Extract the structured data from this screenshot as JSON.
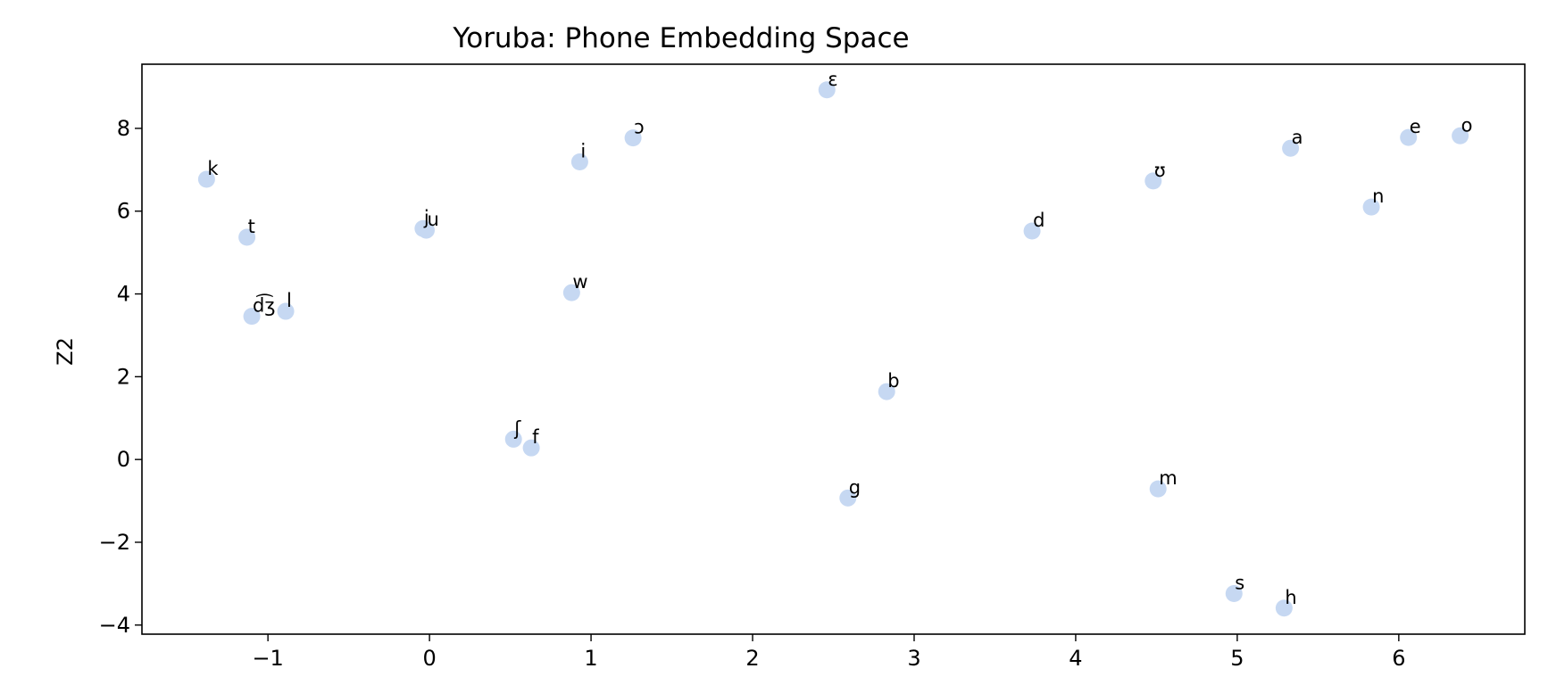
{
  "chart_data": {
    "type": "scatter",
    "title": "Yoruba:  Phone Embedding Space",
    "xlabel": "",
    "ylabel": "Z2",
    "xlim": [
      -1.78,
      6.78
    ],
    "ylim": [
      -4.22,
      9.55
    ],
    "xticks": [
      -1,
      0,
      1,
      2,
      3,
      4,
      5,
      6
    ],
    "xtick_labels": [
      "−1",
      "0",
      "1",
      "2",
      "3",
      "4",
      "5",
      "6"
    ],
    "yticks": [
      -4,
      -2,
      0,
      2,
      4,
      6,
      8
    ],
    "ytick_labels": [
      "−4",
      "−2",
      "0",
      "2",
      "4",
      "6",
      "8"
    ],
    "grid": false,
    "marker_color": "#c6d8f2",
    "points": [
      {
        "label": "k",
        "x": -1.38,
        "y": 6.77
      },
      {
        "label": "t",
        "x": -1.13,
        "y": 5.37
      },
      {
        "label": "d͡ʒ",
        "x": -1.1,
        "y": 3.46
      },
      {
        "label": "l",
        "x": -0.89,
        "y": 3.58
      },
      {
        "label": "j",
        "x": -0.04,
        "y": 5.58
      },
      {
        "label": "u",
        "x": -0.02,
        "y": 5.54
      },
      {
        "label": "ʃ",
        "x": 0.52,
        "y": 0.49
      },
      {
        "label": "f",
        "x": 0.63,
        "y": 0.28
      },
      {
        "label": "w",
        "x": 0.88,
        "y": 4.03
      },
      {
        "label": "i",
        "x": 0.93,
        "y": 7.19
      },
      {
        "label": "ɔ",
        "x": 1.26,
        "y": 7.77
      },
      {
        "label": "ɛ",
        "x": 2.46,
        "y": 8.93
      },
      {
        "label": "g",
        "x": 2.59,
        "y": -0.93
      },
      {
        "label": "b",
        "x": 2.83,
        "y": 1.64
      },
      {
        "label": "d",
        "x": 3.73,
        "y": 5.52
      },
      {
        "label": "ʊ",
        "x": 4.48,
        "y": 6.73
      },
      {
        "label": "m",
        "x": 4.51,
        "y": -0.71
      },
      {
        "label": "s",
        "x": 4.98,
        "y": -3.24
      },
      {
        "label": "h",
        "x": 5.29,
        "y": -3.59
      },
      {
        "label": "a",
        "x": 5.33,
        "y": 7.52
      },
      {
        "label": "n",
        "x": 5.83,
        "y": 6.1
      },
      {
        "label": "e",
        "x": 6.06,
        "y": 7.78
      },
      {
        "label": "o",
        "x": 6.38,
        "y": 7.82
      }
    ]
  }
}
